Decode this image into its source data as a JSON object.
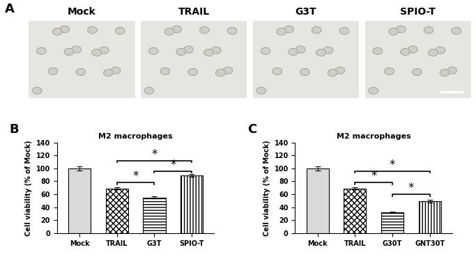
{
  "panel_a": {
    "panel": "A",
    "images": [
      "Mock",
      "TRAIL",
      "G3T",
      "SPIO-T"
    ]
  },
  "chart_data": [
    {
      "type": "bar",
      "panel": "B",
      "title": "M2 macrophages",
      "y_label": "Cell viability (% of Mock)",
      "categories": [
        "Mock",
        "TRAIL",
        "G3T",
        "SPIO-T"
      ],
      "values": [
        100,
        69,
        55,
        89
      ],
      "errors": [
        3,
        2,
        1.5,
        2
      ],
      "colors": [
        "#d9d9d9",
        "#ffffff",
        "#ffffff",
        "#ffffff"
      ],
      "ylim": [
        0,
        140
      ],
      "yticks": [
        0,
        20,
        40,
        60,
        80,
        100,
        120,
        140
      ],
      "significance": [
        {
          "from": "TRAIL",
          "to": "G3T",
          "y": 78,
          "label": "*"
        },
        {
          "from": "G3T",
          "to": "SPIO-T",
          "y": 96,
          "label": "*"
        },
        {
          "from": "TRAIL",
          "to": "SPIO-T",
          "y": 112,
          "label": "*"
        }
      ]
    },
    {
      "type": "bar",
      "panel": "C",
      "title": "M2 macrophages",
      "y_label": "Cell viability (% of Mock)",
      "categories": [
        "Mock",
        "TRAIL",
        "G30T",
        "GNT30T"
      ],
      "values": [
        100,
        69,
        32,
        49
      ],
      "errors": [
        3,
        2,
        1,
        2
      ],
      "colors": [
        "#d9d9d9",
        "#ffffff",
        "#ffffff",
        "#ffffff"
      ],
      "ylim": [
        0,
        140
      ],
      "yticks": [
        0,
        20,
        40,
        60,
        80,
        100,
        120,
        140
      ],
      "significance": [
        {
          "from": "TRAIL",
          "to": "G30T",
          "y": 78,
          "label": "*"
        },
        {
          "from": "G30T",
          "to": "GNT30T",
          "y": 60,
          "label": "*"
        },
        {
          "from": "TRAIL",
          "to": "GNT30T",
          "y": 96,
          "label": "*"
        }
      ]
    }
  ]
}
